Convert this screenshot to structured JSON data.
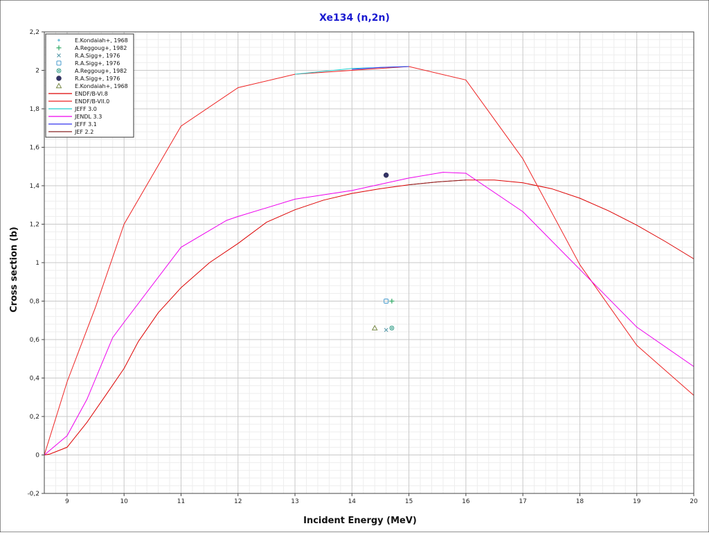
{
  "chart_data": {
    "type": "line",
    "title": "Xe134 (n,2n)",
    "xlabel": "Incident Energy (MeV)",
    "ylabel": "Cross section (b)",
    "xlim": [
      8.6,
      20
    ],
    "ylim": [
      -0.2,
      2.2
    ],
    "x_ticks": [
      9,
      10,
      11,
      12,
      13,
      14,
      15,
      16,
      17,
      18,
      19,
      20
    ],
    "x_tick_labels": [
      "9",
      "10",
      "11",
      "12",
      "13",
      "14",
      "15",
      "16",
      "17",
      "18",
      "19",
      "20"
    ],
    "y_ticks": [
      -0.2,
      0,
      0.2,
      0.4,
      0.6,
      0.8,
      1,
      1.2,
      1.4,
      1.6,
      1.8,
      2,
      2.2
    ],
    "y_tick_labels": [
      "-0,2",
      "0",
      "0,2",
      "0,4",
      "0,6",
      "0,8",
      "1",
      "1,2",
      "1,4",
      "1,6",
      "1,8",
      "2",
      "2,2"
    ],
    "grid": true,
    "legend_position": "top-left",
    "experimental": [
      {
        "name": "E.Kondaiah+, 1968",
        "marker": "plus-small",
        "color": "#44aacc",
        "points": [
          [
            14.7,
            0.8
          ]
        ]
      },
      {
        "name": "A.Reggoug+, 1982",
        "marker": "plus",
        "color": "#33aa66",
        "points": [
          [
            14.7,
            0.8
          ]
        ]
      },
      {
        "name": "R.A.Sigg+, 1976",
        "marker": "x",
        "color": "#5599aa",
        "points": [
          [
            14.6,
            0.65
          ]
        ]
      },
      {
        "name": "R.A.Sigg+, 1976",
        "marker": "square-open",
        "color": "#4499cc",
        "points": [
          [
            14.6,
            0.8
          ]
        ]
      },
      {
        "name": "A.Reggoug+, 1982",
        "marker": "crossed-circle",
        "color": "#55aa99",
        "points": [
          [
            14.7,
            0.66
          ]
        ]
      },
      {
        "name": "R.A.Sigg+, 1976",
        "marker": "filled-circle",
        "color": "#333366",
        "points": [
          [
            14.6,
            1.455
          ]
        ]
      },
      {
        "name": "E.Kondaiah+, 1968",
        "marker": "triangle-open",
        "color": "#778844",
        "points": [
          [
            14.4,
            0.66
          ]
        ]
      }
    ],
    "series": [
      {
        "name": "ENDF/B-VI.8",
        "color": "#dd0000",
        "points": [
          [
            8.6,
            0
          ],
          [
            8.7,
            0.005
          ],
          [
            9,
            0.04
          ],
          [
            9.35,
            0.17
          ],
          [
            9.7,
            0.32
          ],
          [
            10,
            0.45
          ],
          [
            10.25,
            0.59
          ],
          [
            10.6,
            0.74
          ],
          [
            11,
            0.87
          ],
          [
            11.5,
            1.0
          ],
          [
            12,
            1.1
          ],
          [
            12.5,
            1.21
          ],
          [
            13,
            1.275
          ],
          [
            13.5,
            1.325
          ],
          [
            14,
            1.36
          ],
          [
            14.5,
            1.385
          ],
          [
            15,
            1.405
          ],
          [
            15.5,
            1.42
          ],
          [
            16,
            1.43
          ],
          [
            16.5,
            1.43
          ],
          [
            17,
            1.415
          ],
          [
            17.5,
            1.385
          ],
          [
            18,
            1.335
          ],
          [
            18.5,
            1.27
          ],
          [
            19,
            1.195
          ],
          [
            19.5,
            1.11
          ],
          [
            20,
            1.02
          ]
        ]
      },
      {
        "name": "ENDF/B-VII.0",
        "color": "#ee2222",
        "points": [
          [
            8.6,
            0
          ],
          [
            9,
            0.38
          ],
          [
            9.5,
            0.77
          ],
          [
            10,
            1.2
          ],
          [
            11,
            1.71
          ],
          [
            12,
            1.91
          ],
          [
            13,
            1.98
          ],
          [
            14,
            2.0
          ],
          [
            15,
            2.02
          ],
          [
            16,
            1.95
          ],
          [
            17,
            1.54
          ],
          [
            18,
            0.99
          ],
          [
            19,
            0.57
          ],
          [
            20,
            0.31
          ]
        ]
      },
      {
        "name": "JEFF 3.0",
        "color": "#22cccc",
        "points": [
          [
            13,
            1.98
          ],
          [
            14,
            2.01
          ],
          [
            14.8,
            2.018
          ],
          [
            15,
            2.02
          ]
        ]
      },
      {
        "name": "JENDL 3.3",
        "color": "#ee00ee",
        "points": [
          [
            8.6,
            0
          ],
          [
            9,
            0.1
          ],
          [
            9.35,
            0.29
          ],
          [
            9.8,
            0.61
          ],
          [
            10,
            0.69
          ],
          [
            11,
            1.08
          ],
          [
            11.8,
            1.22
          ],
          [
            12,
            1.24
          ],
          [
            13,
            1.33
          ],
          [
            14,
            1.375
          ],
          [
            15,
            1.44
          ],
          [
            15.6,
            1.47
          ],
          [
            16,
            1.465
          ],
          [
            17,
            1.265
          ],
          [
            18,
            0.965
          ],
          [
            19,
            0.665
          ],
          [
            20,
            0.46
          ]
        ]
      },
      {
        "name": "JEFF 3.1",
        "color": "#3333ee",
        "points": [
          [
            14,
            2.005
          ],
          [
            14.5,
            2.015
          ],
          [
            15,
            2.02
          ]
        ]
      },
      {
        "name": "JEF 2.2",
        "color": "#882222",
        "points": [
          [
            15,
            1.405
          ],
          [
            15.5,
            1.42
          ],
          [
            16,
            1.43
          ]
        ]
      }
    ]
  }
}
